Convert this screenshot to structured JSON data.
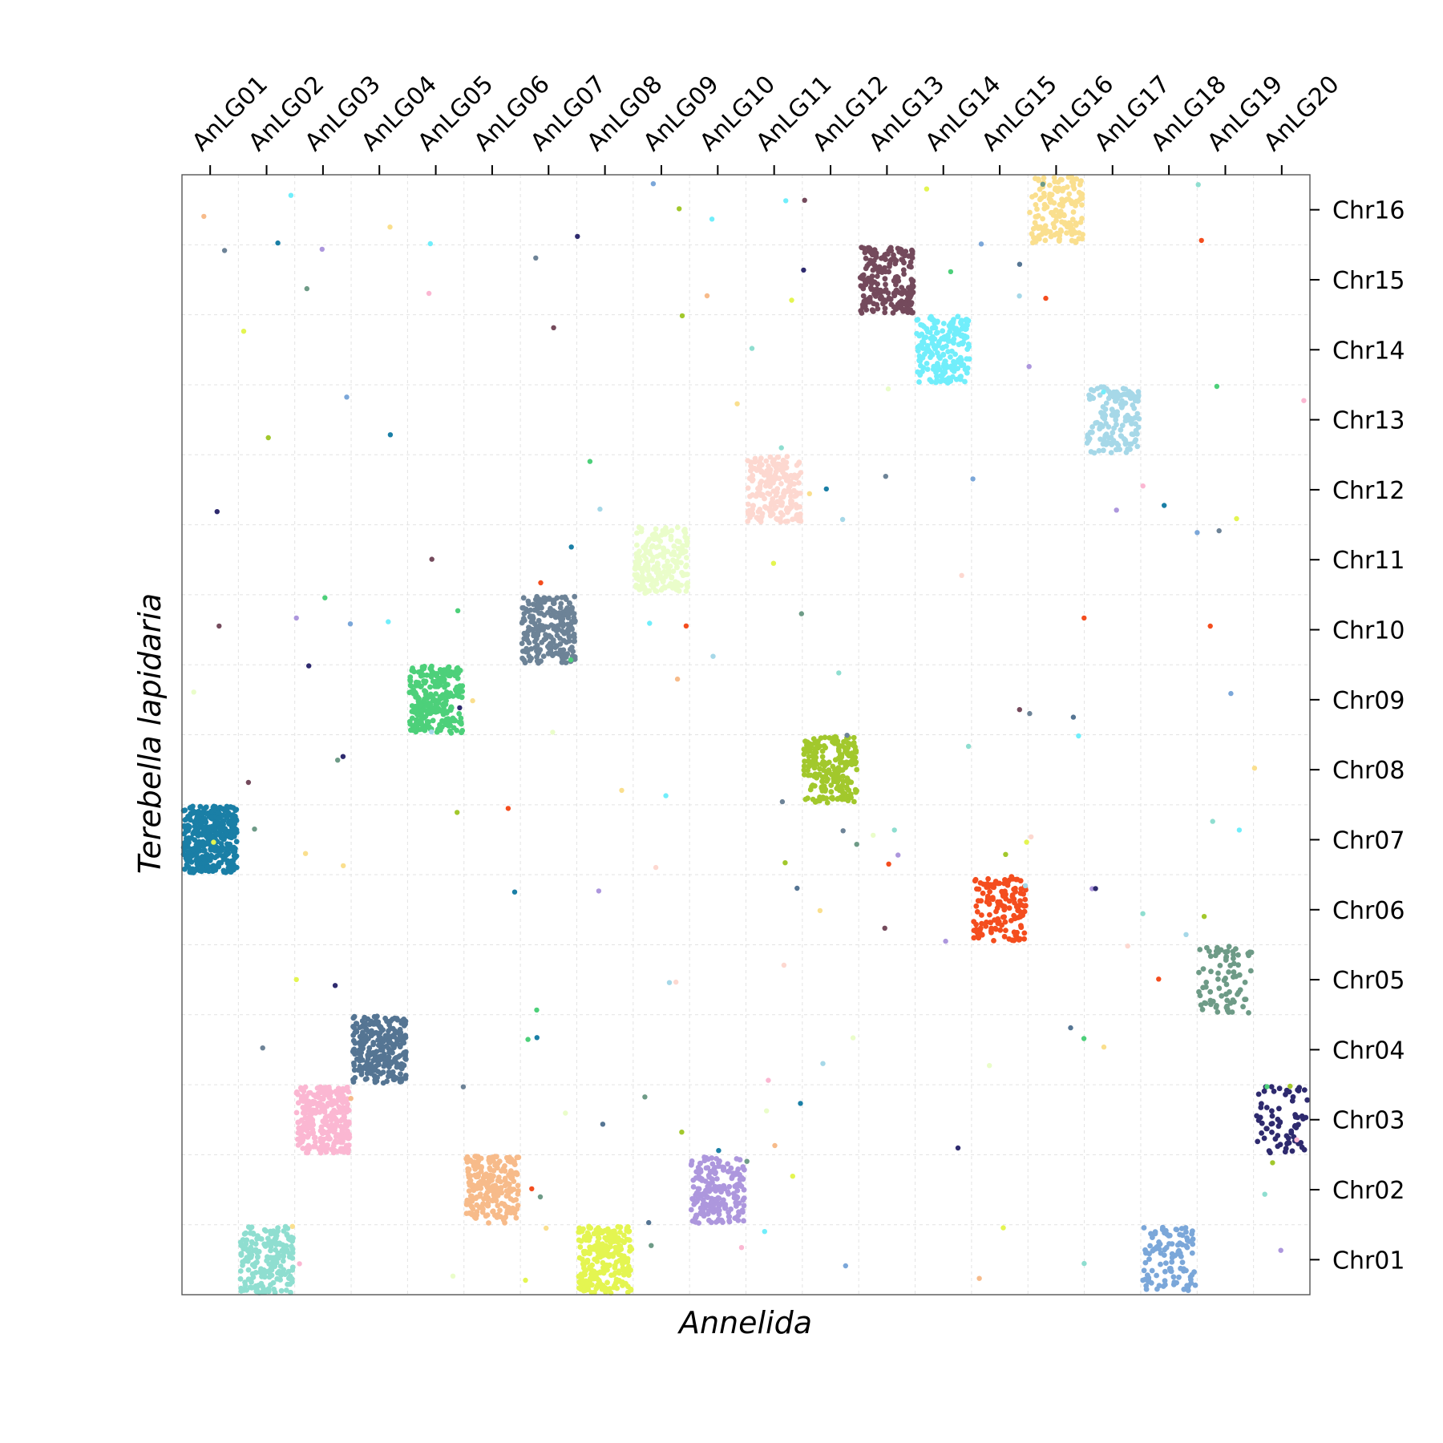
{
  "chart_data": {
    "type": "scatter",
    "xlabel": "Annelida",
    "ylabel": "Terebella lapidaria",
    "x_axis_position": "top",
    "y_axis_position": "right",
    "grid": true,
    "x_categories": [
      "AnLG01",
      "AnLG02",
      "AnLG03",
      "AnLG04",
      "AnLG05",
      "AnLG06",
      "AnLG07",
      "AnLG08",
      "AnLG09",
      "AnLG10",
      "AnLG11",
      "AnLG12",
      "AnLG13",
      "AnLG14",
      "AnLG15",
      "AnLG16",
      "AnLG17",
      "AnLG18",
      "AnLG19",
      "AnLG20"
    ],
    "y_categories": [
      "Chr01",
      "Chr02",
      "Chr03",
      "Chr04",
      "Chr05",
      "Chr06",
      "Chr07",
      "Chr08",
      "Chr09",
      "Chr10",
      "Chr11",
      "Chr12",
      "Chr13",
      "Chr14",
      "Chr15",
      "Chr16"
    ],
    "clusters": [
      {
        "x": "AnLG01",
        "y": "Chr07",
        "color": "#1a7fa6",
        "count": 380
      },
      {
        "x": "AnLG02",
        "y": "Chr01",
        "color": "#8fded0",
        "count": 200
      },
      {
        "x": "AnLG03",
        "y": "Chr03",
        "color": "#fbb7d2",
        "count": 300
      },
      {
        "x": "AnLG04",
        "y": "Chr04",
        "color": "#557593",
        "count": 280
      },
      {
        "x": "AnLG05",
        "y": "Chr09",
        "color": "#4dd07a",
        "count": 260
      },
      {
        "x": "AnLG06",
        "y": "Chr02",
        "color": "#f7bb8a",
        "count": 220
      },
      {
        "x": "AnLG07",
        "y": "Chr10",
        "color": "#6d8397",
        "count": 230
      },
      {
        "x": "AnLG08",
        "y": "Chr01",
        "color": "#e4f551",
        "count": 260
      },
      {
        "x": "AnLG09",
        "y": "Chr11",
        "color": "#eafdca",
        "count": 200
      },
      {
        "x": "AnLG10",
        "y": "Chr02",
        "color": "#ad97dd",
        "count": 200
      },
      {
        "x": "AnLG11",
        "y": "Chr12",
        "color": "#fdd8d0",
        "count": 200
      },
      {
        "x": "AnLG12",
        "y": "Chr08",
        "color": "#a2c82c",
        "count": 220
      },
      {
        "x": "AnLG13",
        "y": "Chr15",
        "color": "#744a5c",
        "count": 200
      },
      {
        "x": "AnLG14",
        "y": "Chr14",
        "color": "#71eefb",
        "count": 200
      },
      {
        "x": "AnLG15",
        "y": "Chr06",
        "color": "#f44d1e",
        "count": 150
      },
      {
        "x": "AnLG16",
        "y": "Chr16",
        "color": "#fadf8e",
        "count": 150
      },
      {
        "x": "AnLG17",
        "y": "Chr13",
        "color": "#a6d8e8",
        "count": 150
      },
      {
        "x": "AnLG18",
        "y": "Chr01",
        "color": "#7ba7d9",
        "count": 110
      },
      {
        "x": "AnLG19",
        "y": "Chr05",
        "color": "#6e9b87",
        "count": 80
      },
      {
        "x": "AnLG20",
        "y": "Chr03",
        "color": "#2e2a6e",
        "count": 70
      }
    ]
  }
}
